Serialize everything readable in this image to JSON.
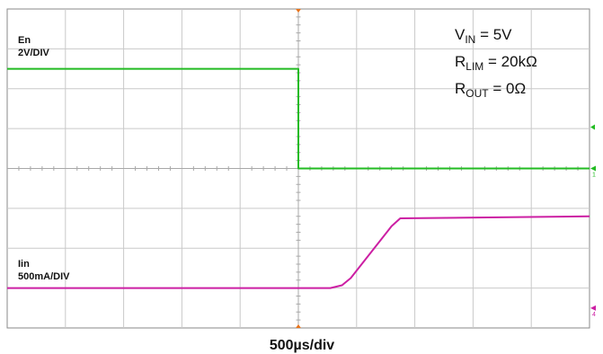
{
  "chart_data": {
    "type": "line",
    "time_per_div": "500µs/div",
    "x_divisions": 10,
    "y_divisions": 8,
    "grid": true,
    "conditions": {
      "vin": {
        "main": "V",
        "sub": "IN",
        "rest": " = 5V"
      },
      "rlim": {
        "main": "R",
        "sub": "LIM",
        "rest": " = 20kΩ"
      },
      "rout": {
        "main": "R",
        "sub": "OUT",
        "rest": " = 0Ω"
      }
    },
    "series": [
      {
        "name": "En",
        "scale": "2V/DIV",
        "color": "#22bb22",
        "marker_label": "1",
        "ref_level_div": 4.0,
        "points_div": [
          [
            0,
            6.5
          ],
          [
            5.0,
            6.5
          ],
          [
            5.0,
            4.0
          ],
          [
            10,
            4.0
          ]
        ]
      },
      {
        "name": "Iin",
        "scale": "500mA/DIV",
        "color": "#cc1fa3",
        "marker_label": "4",
        "ref_level_div": 0.5,
        "points_div": [
          [
            0,
            1.0
          ],
          [
            5.55,
            1.0
          ],
          [
            5.75,
            1.07
          ],
          [
            5.9,
            1.25
          ],
          [
            6.6,
            2.55
          ],
          [
            6.75,
            2.75
          ],
          [
            10,
            2.8
          ]
        ]
      }
    ]
  }
}
